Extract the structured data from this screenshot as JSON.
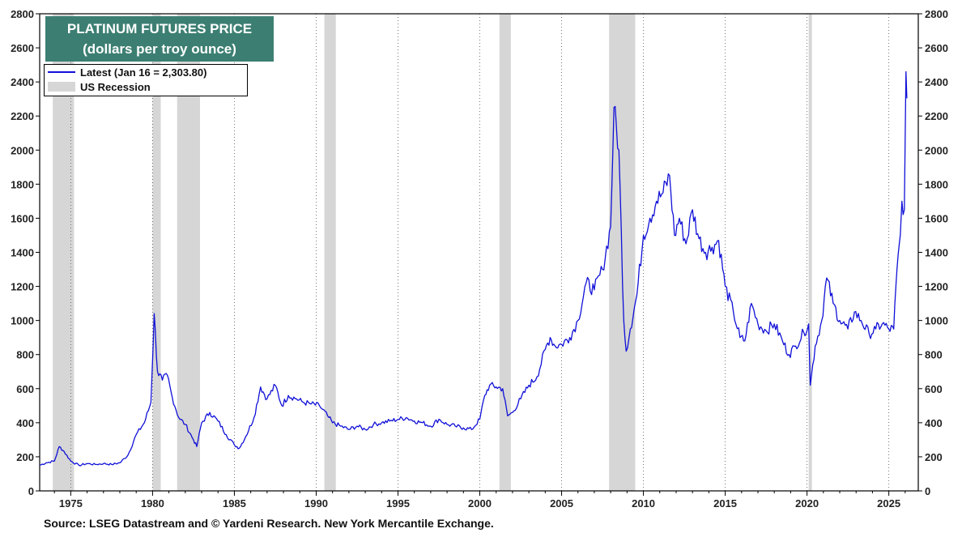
{
  "chart_data": {
    "type": "line",
    "title": "PLATINUM FUTURES PRICE",
    "subtitle": "(dollars per troy ounce)",
    "ylabel": "dollars per troy ounce",
    "xlabel": "",
    "ylim": [
      0,
      2800
    ],
    "xlim": [
      1973.1,
      2026.8
    ],
    "y_ticks": [
      0,
      200,
      400,
      600,
      800,
      1000,
      1200,
      1400,
      1600,
      1800,
      2000,
      2200,
      2400,
      2600,
      2800
    ],
    "x_ticks": [
      1975,
      1980,
      1985,
      1990,
      1995,
      2000,
      2005,
      2010,
      2015,
      2020,
      2025
    ],
    "legend_position": "top-left",
    "colors": {
      "line": "#1010d8",
      "recession": "#d6d6d6",
      "title_bg": "#3c7f72"
    },
    "series": [
      {
        "name": "Latest (Jan 16 = 2,303.80)",
        "points": [
          [
            1973.1,
            150
          ],
          [
            1973.5,
            165
          ],
          [
            1974.0,
            175
          ],
          [
            1974.3,
            260
          ],
          [
            1974.6,
            230
          ],
          [
            1975.0,
            175
          ],
          [
            1975.5,
            150
          ],
          [
            1976.0,
            160
          ],
          [
            1976.5,
            155
          ],
          [
            1977.0,
            160
          ],
          [
            1977.5,
            155
          ],
          [
            1978.0,
            165
          ],
          [
            1978.5,
            210
          ],
          [
            1979.0,
            330
          ],
          [
            1979.5,
            400
          ],
          [
            1979.9,
            520
          ],
          [
            1980.1,
            1040
          ],
          [
            1980.3,
            700
          ],
          [
            1980.6,
            650
          ],
          [
            1980.9,
            680
          ],
          [
            1981.2,
            550
          ],
          [
            1981.6,
            430
          ],
          [
            1982.0,
            390
          ],
          [
            1982.5,
            300
          ],
          [
            1982.7,
            260
          ],
          [
            1983.0,
            400
          ],
          [
            1983.5,
            460
          ],
          [
            1984.0,
            410
          ],
          [
            1984.5,
            330
          ],
          [
            1985.0,
            270
          ],
          [
            1985.3,
            250
          ],
          [
            1985.7,
            320
          ],
          [
            1986.2,
            430
          ],
          [
            1986.6,
            610
          ],
          [
            1987.0,
            540
          ],
          [
            1987.5,
            620
          ],
          [
            1987.9,
            500
          ],
          [
            1988.3,
            560
          ],
          [
            1988.8,
            540
          ],
          [
            1989.2,
            520
          ],
          [
            1989.7,
            510
          ],
          [
            1990.2,
            500
          ],
          [
            1990.7,
            440
          ],
          [
            1991.0,
            400
          ],
          [
            1991.5,
            380
          ],
          [
            1992.0,
            360
          ],
          [
            1992.5,
            380
          ],
          [
            1993.0,
            360
          ],
          [
            1993.5,
            390
          ],
          [
            1994.0,
            400
          ],
          [
            1994.5,
            410
          ],
          [
            1995.0,
            420
          ],
          [
            1995.5,
            430
          ],
          [
            1996.0,
            410
          ],
          [
            1996.5,
            400
          ],
          [
            1997.0,
            380
          ],
          [
            1997.5,
            420
          ],
          [
            1998.0,
            390
          ],
          [
            1998.5,
            380
          ],
          [
            1999.0,
            370
          ],
          [
            1999.5,
            360
          ],
          [
            2000.0,
            420
          ],
          [
            2000.3,
            560
          ],
          [
            2000.6,
            620
          ],
          [
            2001.0,
            610
          ],
          [
            2001.4,
            600
          ],
          [
            2001.7,
            440
          ],
          [
            2002.0,
            460
          ],
          [
            2002.5,
            540
          ],
          [
            2003.0,
            620
          ],
          [
            2003.5,
            670
          ],
          [
            2004.0,
            830
          ],
          [
            2004.3,
            900
          ],
          [
            2004.6,
            850
          ],
          [
            2005.0,
            860
          ],
          [
            2005.5,
            900
          ],
          [
            2006.0,
            1000
          ],
          [
            2006.5,
            1220
          ],
          [
            2007.0,
            1180
          ],
          [
            2007.5,
            1300
          ],
          [
            2008.0,
            1550
          ],
          [
            2008.2,
            2250
          ],
          [
            2008.5,
            2000
          ],
          [
            2008.8,
            1000
          ],
          [
            2008.95,
            820
          ],
          [
            2009.2,
            950
          ],
          [
            2009.6,
            1150
          ],
          [
            2010.0,
            1500
          ],
          [
            2010.4,
            1600
          ],
          [
            2010.8,
            1700
          ],
          [
            2011.2,
            1750
          ],
          [
            2011.6,
            1850
          ],
          [
            2011.9,
            1500
          ],
          [
            2012.2,
            1600
          ],
          [
            2012.6,
            1450
          ],
          [
            2013.0,
            1650
          ],
          [
            2013.4,
            1480
          ],
          [
            2013.8,
            1400
          ],
          [
            2014.2,
            1430
          ],
          [
            2014.6,
            1470
          ],
          [
            2015.0,
            1200
          ],
          [
            2015.5,
            1050
          ],
          [
            2015.9,
            900
          ],
          [
            2016.2,
            880
          ],
          [
            2016.6,
            1100
          ],
          [
            2017.0,
            980
          ],
          [
            2017.5,
            940
          ],
          [
            2018.0,
            980
          ],
          [
            2018.5,
            880
          ],
          [
            2018.9,
            800
          ],
          [
            2019.3,
            850
          ],
          [
            2019.8,
            930
          ],
          [
            2020.1,
            980
          ],
          [
            2020.2,
            620
          ],
          [
            2020.5,
            850
          ],
          [
            2020.9,
            1000
          ],
          [
            2021.2,
            1250
          ],
          [
            2021.6,
            1100
          ],
          [
            2022.0,
            1000
          ],
          [
            2022.5,
            950
          ],
          [
            2022.9,
            1050
          ],
          [
            2023.3,
            1000
          ],
          [
            2023.8,
            920
          ],
          [
            2024.2,
            950
          ],
          [
            2024.6,
            980
          ],
          [
            2025.0,
            950
          ],
          [
            2025.3,
            950
          ],
          [
            2025.5,
            1300
          ],
          [
            2025.7,
            1500
          ],
          [
            2025.8,
            1700
          ],
          [
            2025.95,
            1650
          ],
          [
            2026.05,
            2460
          ],
          [
            2026.1,
            2303.8
          ]
        ]
      }
    ],
    "recessions": [
      [
        1973.9,
        1975.2
      ],
      [
        1980.0,
        1980.5
      ],
      [
        1981.5,
        1982.9
      ],
      [
        1990.5,
        1991.2
      ],
      [
        2001.2,
        2001.9
      ],
      [
        2007.9,
        2009.5
      ],
      [
        2020.1,
        2020.3
      ]
    ]
  },
  "title_box": {
    "line1": "PLATINUM FUTURES PRICE",
    "line2": "(dollars per troy ounce)"
  },
  "legend": {
    "latest_label": "Latest (Jan 16 = 2,303.80)",
    "recession_label": "US Recession"
  },
  "source": "Source: LSEG Datastream and © Yardeni Research. New York Mercantile Exchange."
}
